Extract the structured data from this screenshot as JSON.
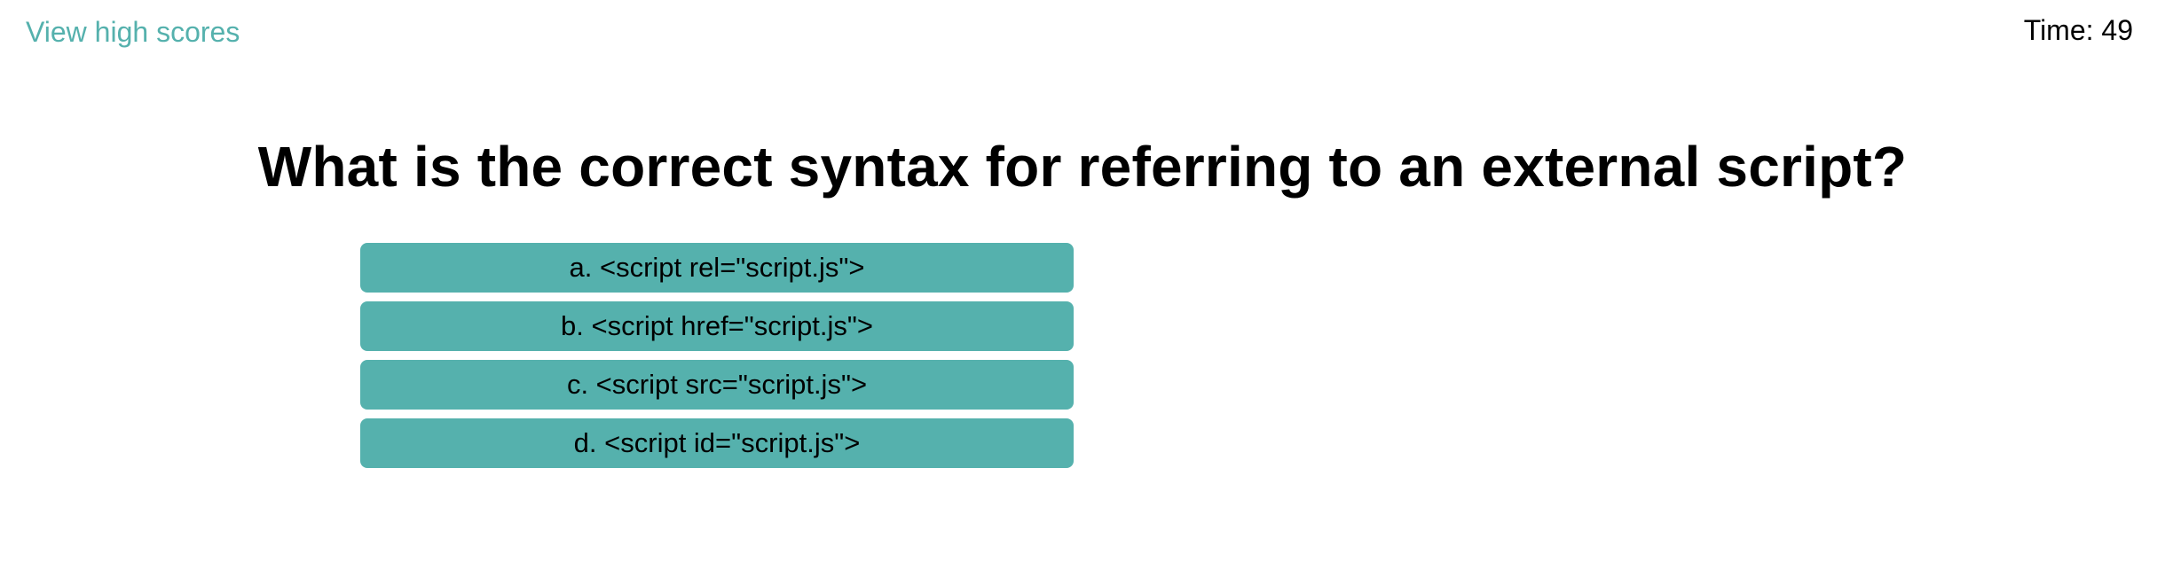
{
  "header": {
    "high_scores_link": "View high scores",
    "timer_label": "Time: 49"
  },
  "quiz": {
    "question": "What is the correct syntax for referring to an external script?",
    "answers": [
      {
        "label": "a. <script rel=\"script.js\">"
      },
      {
        "label": "b. <script href=\"script.js\">"
      },
      {
        "label": "c. <script src=\"script.js\">"
      },
      {
        "label": "d. <script id=\"script.js\">"
      }
    ]
  },
  "colors": {
    "accent": "#55b1ad",
    "text": "#000000",
    "background": "#ffffff"
  }
}
